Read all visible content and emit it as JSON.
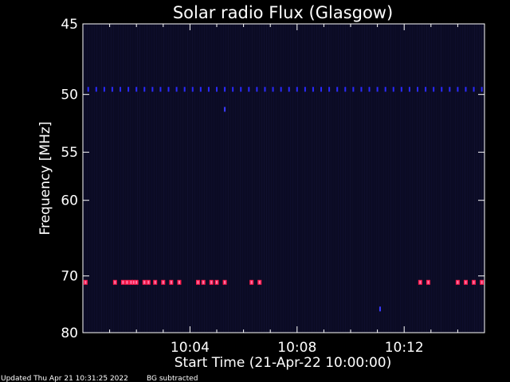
{
  "chart_data": {
    "type": "heatmap",
    "title": "Solar radio Flux (Glasgow)",
    "ylabel": "Frequency [MHz]",
    "xlabel": "Start Time (21-Apr-22 10:00:00)",
    "y_ticks": [
      "45",
      "50",
      "55",
      "60",
      "70",
      "80"
    ],
    "y_tick_values": [
      45,
      50,
      55,
      60,
      70,
      80
    ],
    "y_scale": "reciprocal",
    "ylim": [
      45,
      80
    ],
    "x_ticks": [
      "10:04",
      "10:08",
      "10:12"
    ],
    "x_tick_values_min": [
      4,
      8,
      12
    ],
    "xlim_min": [
      0,
      15
    ],
    "grid": false,
    "background_color": "#0b0b24",
    "features": [
      {
        "name": "",
        "frequency_mhz": 49.6,
        "color": "#2a2aff",
        "times_min": [
          0.2,
          0.5,
          0.8,
          1.1,
          1.4,
          1.7,
          2.0,
          2.3,
          2.6,
          2.9,
          3.2,
          3.5,
          3.8,
          4.1,
          4.4,
          4.7,
          5.0,
          5.3,
          5.6,
          5.9,
          6.2,
          6.5,
          6.8,
          7.1,
          7.4,
          7.7,
          8.0,
          8.3,
          8.6,
          8.9,
          9.2,
          9.5,
          9.8,
          10.1,
          10.4,
          10.7,
          11.0,
          11.3,
          11.6,
          11.9,
          12.2,
          12.5,
          12.8,
          13.1,
          13.4,
          13.7,
          14.0,
          14.3,
          14.6,
          14.9
        ]
      },
      {
        "name": "",
        "frequency_mhz": 71.0,
        "color": "#ff1a4a",
        "times_min": [
          0.1,
          1.2,
          1.5,
          1.65,
          1.8,
          1.9,
          2.0,
          2.3,
          2.45,
          2.7,
          3.0,
          3.3,
          3.6,
          4.3,
          4.5,
          4.8,
          5.0,
          5.3,
          6.3,
          6.6,
          12.6,
          12.9,
          14.0,
          14.3,
          14.6,
          14.9
        ]
      },
      {
        "name": "",
        "frequency_mhz": 51.2,
        "color": "#3a3aff",
        "times_min": [
          5.3
        ]
      },
      {
        "name": "",
        "frequency_mhz": 75.5,
        "color": "#3a3aff",
        "times_min": [
          11.1
        ]
      }
    ]
  },
  "footer": {
    "updated": "Updated Thu Apr 21 10:31:25 2022",
    "note": "BG subtracted"
  }
}
